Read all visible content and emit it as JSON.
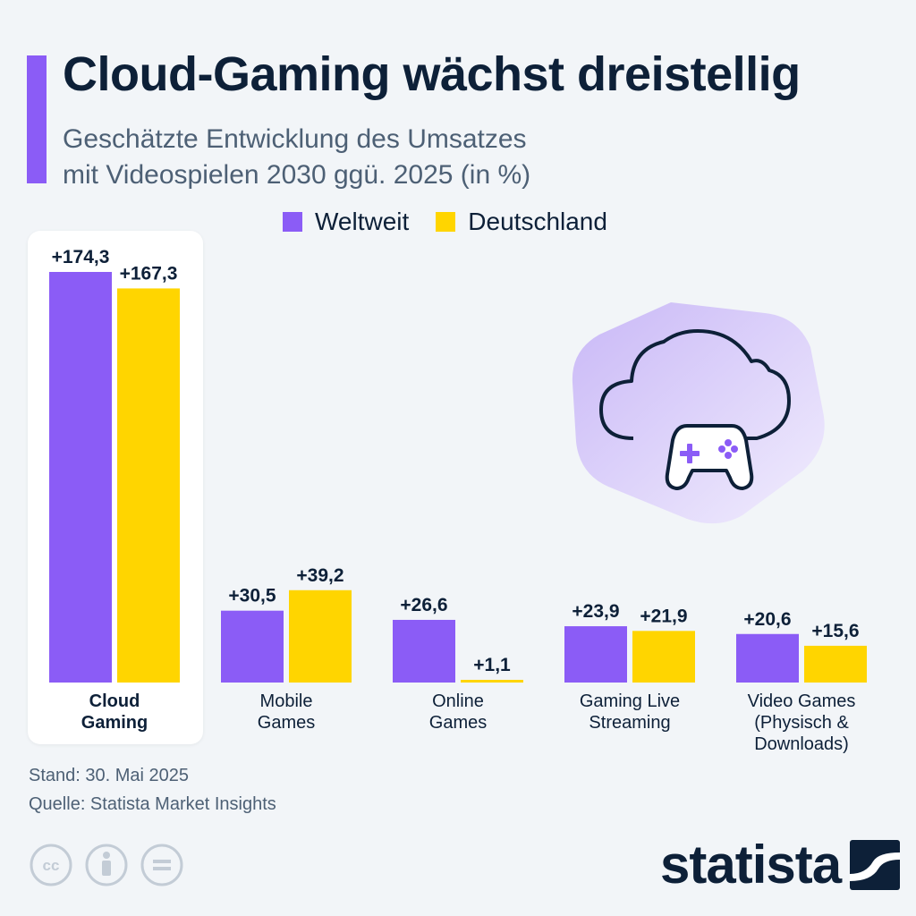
{
  "header": {
    "title": "Cloud-Gaming wächst dreistellig",
    "subtitle_line1": "Geschätzte Entwicklung des Umsatzes",
    "subtitle_line2": "mit Videospielen 2030 ggü. 2025 (in %)"
  },
  "legend": {
    "items": [
      {
        "label": "Weltweit",
        "color": "#8b5cf6"
      },
      {
        "label": "Deutschland",
        "color": "#ffd500"
      }
    ]
  },
  "chart_data": {
    "type": "bar",
    "title": "Cloud-Gaming wächst dreistellig",
    "subtitle": "Geschätzte Entwicklung des Umsatzes mit Videospielen 2030 ggü. 2025 (in %)",
    "categories": [
      [
        "Cloud",
        "Gaming"
      ],
      [
        "Mobile",
        "Games"
      ],
      [
        "Online",
        "Games"
      ],
      [
        "Gaming Live",
        "Streaming"
      ],
      [
        "Video Games",
        "(Physisch &",
        "Downloads)"
      ]
    ],
    "highlighted_category": 0,
    "series": [
      {
        "name": "Weltweit",
        "color": "#8b5cf6",
        "values": [
          174.3,
          30.5,
          26.6,
          23.9,
          20.6
        ],
        "labels": [
          "+174,3",
          "+30,5",
          "+26,6",
          "+23,9",
          "+20,6"
        ]
      },
      {
        "name": "Deutschland",
        "color": "#ffd500",
        "values": [
          167.3,
          39.2,
          1.1,
          21.9,
          15.6
        ],
        "labels": [
          "+167,3",
          "+39,2",
          "+1,1",
          "+21,9",
          "+15,6"
        ]
      }
    ],
    "ylim": [
      0,
      174.3
    ],
    "grid": false,
    "legend_position": "top"
  },
  "illustration": {
    "icon": "cloud-gamepad-icon",
    "accent": "#8b5cf6",
    "blob": "#e4dcfb"
  },
  "footer": {
    "date": "Stand: 30. Mai 2025",
    "source": "Quelle: Statista Market Insights"
  },
  "license_icons": [
    "cc-icon",
    "attribution-icon",
    "no-derivatives-icon"
  ],
  "brand": {
    "name": "statista"
  }
}
